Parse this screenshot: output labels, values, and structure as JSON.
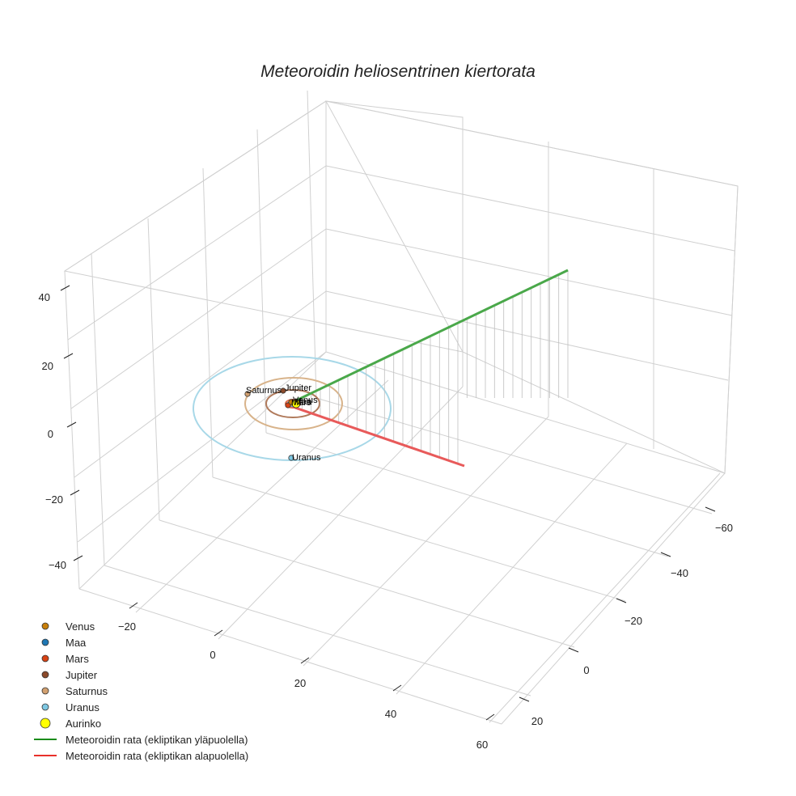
{
  "chart_data": {
    "type": "scatter3d",
    "title": "Meteoroidin heliosentrinen kiertorata",
    "axes": {
      "x_ticks": [
        "−20",
        "0",
        "20",
        "40",
        "60"
      ],
      "y_ticks": [
        "−60",
        "−40",
        "−20",
        "0",
        "20"
      ],
      "z_ticks": [
        "40",
        "20",
        "0",
        "−20",
        "−40"
      ],
      "grid": true
    },
    "planets": [
      {
        "name": "Venus",
        "color": "#c87f0a",
        "orbit_radius": 0.72,
        "label": "Venus"
      },
      {
        "name": "Maa",
        "color": "#1f77b4",
        "orbit_radius": 1.0,
        "label": "Maa"
      },
      {
        "name": "Mars",
        "color": "#d84315",
        "orbit_radius": 1.52,
        "label": "Mars"
      },
      {
        "name": "Jupiter",
        "color": "#8b4a2b",
        "orbit_radius": 5.2,
        "label": "Jupiter"
      },
      {
        "name": "Saturnus",
        "color": "#d2a070",
        "orbit_radius": 9.5,
        "label": "Saturnus"
      },
      {
        "name": "Uranus",
        "color": "#7ec8e3",
        "orbit_radius": 19.2,
        "label": "Uranus"
      }
    ],
    "sun": {
      "name": "Aurinko",
      "color": "#ffff00"
    },
    "series": [
      {
        "name": "Meteoroidin rata (ekliptikan yläpuolella)",
        "color": "#2e9b2e"
      },
      {
        "name": "Meteoroidin rata (ekliptikan alapuolella)",
        "color": "#e8302a"
      }
    ],
    "legend": {
      "position": "bottom-left",
      "entries": [
        {
          "label": "Venus",
          "color": "#c87f0a",
          "kind": "marker"
        },
        {
          "label": "Maa",
          "color": "#1f77b4",
          "kind": "marker"
        },
        {
          "label": "Mars",
          "color": "#d84315",
          "kind": "marker"
        },
        {
          "label": "Jupiter",
          "color": "#8b4a2b",
          "kind": "marker"
        },
        {
          "label": "Saturnus",
          "color": "#d2a070",
          "kind": "marker"
        },
        {
          "label": "Uranus",
          "color": "#7ec8e3",
          "kind": "marker"
        },
        {
          "label": "Aurinko",
          "color": "#ffff00",
          "kind": "marker-large"
        },
        {
          "label": "Meteoroidin rata (ekliptikan yläpuolella)",
          "color": "#1a8c1a",
          "kind": "line"
        },
        {
          "label": "Meteoroidin rata (ekliptikan alapuolella)",
          "color": "#e8302a",
          "kind": "line"
        }
      ]
    }
  }
}
